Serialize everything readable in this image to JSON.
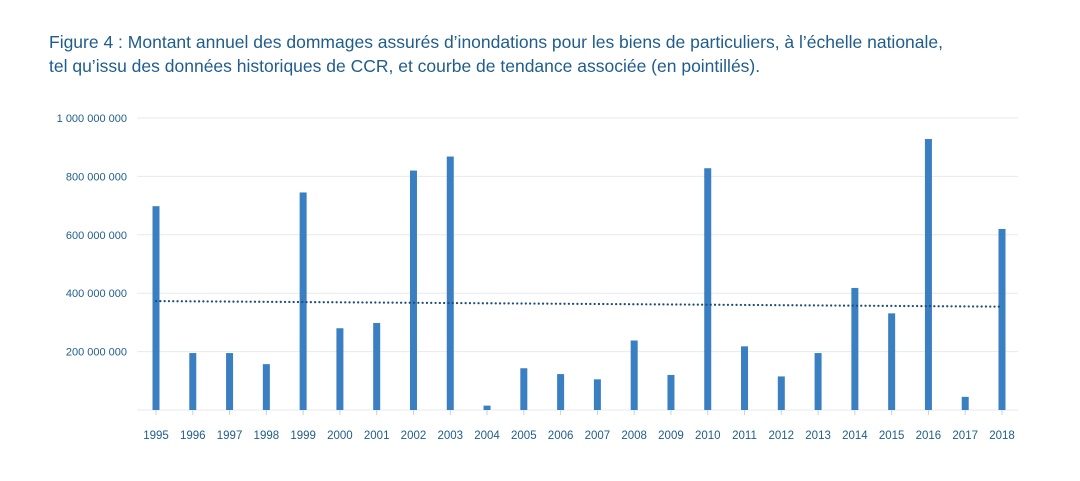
{
  "figure": {
    "title_line1": "Figure 4 : Montant annuel des dommages assurés d’inondations pour les biens de particuliers, à l’échelle nationale,",
    "title_line2": "tel qu’issu des données historiques de CCR, et courbe de tendance associée (en pointillés)."
  },
  "colors": {
    "bar": "#3a7fc1",
    "trend": "#1f4e79",
    "text": "#1f5d8c",
    "grid": "#e6e9ee"
  },
  "chart_data": {
    "type": "bar",
    "title": "Figure 4 : Montant annuel des dommages assurés d’inondations pour les biens de particuliers, à l’échelle nationale, tel qu’issu des données historiques de CCR, et courbe de tendance associée (en pointillés).",
    "xlabel": "",
    "ylabel": "",
    "categories": [
      "1995",
      "1996",
      "1997",
      "1998",
      "1999",
      "2000",
      "2001",
      "2002",
      "2003",
      "2004",
      "2005",
      "2006",
      "2007",
      "2008",
      "2009",
      "2010",
      "2011",
      "2012",
      "2013",
      "2014",
      "2015",
      "2016",
      "2017",
      "2018"
    ],
    "values": [
      698000000,
      195000000,
      195000000,
      157000000,
      745000000,
      280000000,
      298000000,
      820000000,
      868000000,
      15000000,
      143000000,
      123000000,
      105000000,
      238000000,
      120000000,
      828000000,
      218000000,
      115000000,
      195000000,
      418000000,
      331000000,
      928000000,
      45000000,
      620000000
    ],
    "trend": {
      "style": "dotted",
      "start": 373000000,
      "end": 354000000
    },
    "ylim": [
      0,
      1000000000
    ],
    "yticks": [
      {
        "value": 200000000,
        "label": "200 000 000"
      },
      {
        "value": 400000000,
        "label": "400 000 000"
      },
      {
        "value": 600000000,
        "label": "600 000 000"
      },
      {
        "value": 800000000,
        "label": "800 000 000"
      },
      {
        "value": 1000000000,
        "label": "1 000 000 000"
      }
    ],
    "grid": true,
    "legend": "none"
  }
}
